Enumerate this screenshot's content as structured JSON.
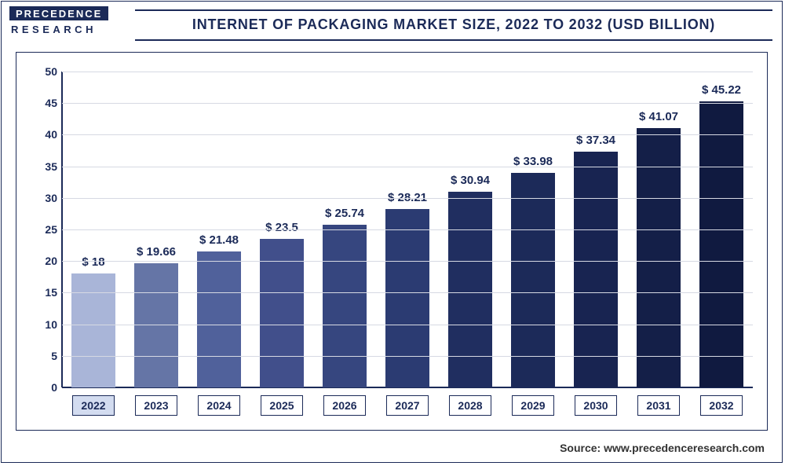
{
  "logo": {
    "top": "PRECEDENCE",
    "bottom": "RESEARCH"
  },
  "title": "INTERNET OF PACKAGING MARKET SIZE, 2022 TO 2032 (USD BILLION)",
  "source": "Source: www.precedenceresearch.com",
  "chart": {
    "type": "bar",
    "ylim": [
      0,
      50
    ],
    "ytick_step": 5,
    "y_ticks": [
      0,
      5,
      10,
      15,
      20,
      25,
      30,
      35,
      40,
      45,
      50
    ],
    "grid_color": "#d6d9e3",
    "axis_color": "#1b2a58",
    "text_color": "#1b2a58",
    "background_color": "#ffffff",
    "label_fontsize": 15,
    "tick_fontsize": 14,
    "bar_width": 0.7,
    "categories": [
      "2022",
      "2023",
      "2024",
      "2025",
      "2026",
      "2027",
      "2028",
      "2029",
      "2030",
      "2031",
      "2032"
    ],
    "values": [
      18,
      19.66,
      21.48,
      23.5,
      25.74,
      28.21,
      30.94,
      33.98,
      37.34,
      41.07,
      45.22
    ],
    "value_labels": [
      "$ 18",
      "$ 19.66",
      "$ 21.48",
      "$ 23.5",
      "$ 25.74",
      "$ 28.21",
      "$ 30.94",
      "$ 33.98",
      "$ 37.34",
      "$ 41.07",
      "$ 45.22"
    ],
    "bar_colors": [
      "#a9b5d8",
      "#6575a6",
      "#50619b",
      "#414f8b",
      "#36467f",
      "#2b3b72",
      "#202e60",
      "#1c2a59",
      "#182451",
      "#141f48",
      "#101a40"
    ],
    "highlight_bg": "#d3dcf0"
  }
}
